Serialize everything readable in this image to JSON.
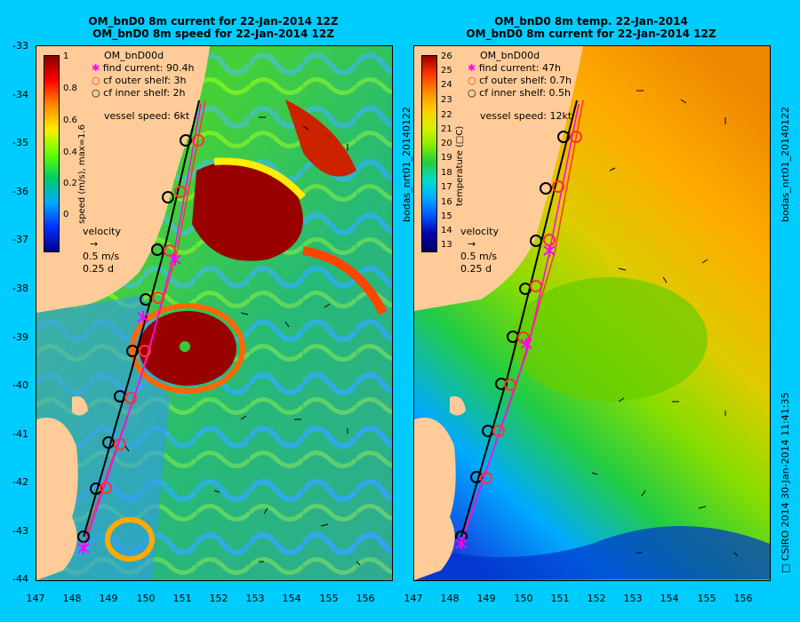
{
  "left": {
    "title1": "OM_bnD0 8m current for 22-Jan-2014 12Z",
    "title2": "OM_bnD0 8m speed for 22-Jan-2014 12Z",
    "legend_title": "OM_bnD00d",
    "find": "find current: 90.4h",
    "outer": "cf outer shelf: 3h",
    "inner": "cf inner shelf: 2h",
    "vessel": "vessel speed: 6kt",
    "cbar_label": "speed (m/s), max=1.6",
    "cbar_ticks": [
      "1",
      "0.8",
      "0.6",
      "0.4",
      "0.2",
      "0"
    ],
    "velocity": "velocity",
    "vel1": "0.5 m/s",
    "vel2": "0.25 d"
  },
  "right": {
    "title1": "OM_bnD0 8m temp. 22-Jan-2014",
    "title2": "OM_bnD0 8m current for 22-Jan-2014 12Z",
    "legend_title": "OM_bnD00d",
    "find": "find current: 47h",
    "outer": "cf outer shelf: 0.7h",
    "inner": "cf inner shelf: 0.5h",
    "vessel": "vessel speed: 12kt",
    "cbar_label": "temperature (□C)",
    "cbar_ticks": [
      "26",
      "25",
      "24",
      "23",
      "22",
      "21",
      "20",
      "19",
      "18",
      "17",
      "16",
      "15",
      "14",
      "13"
    ],
    "velocity": "velocity",
    "vel1": "0.5 m/s",
    "vel2": "0.25 d"
  },
  "y_ticks": [
    "-33",
    "-34",
    "-35",
    "-36",
    "-37",
    "-38",
    "-39",
    "-40",
    "-41",
    "-42",
    "-43",
    "-44"
  ],
  "x_ticks": [
    "147",
    "148",
    "149",
    "150",
    "151",
    "152",
    "153",
    "154",
    "155",
    "156"
  ],
  "side_left": "bodas_nrt01_20140122",
  "side_right": "bodas_nrt01_20140122",
  "credit": "□ CSIRO 2014   30-Jan-2014 11:41:35",
  "colors": {
    "land": "#ffcc99",
    "background": "#00ccff",
    "find": "#ff00ff",
    "outer": "#ff3333",
    "inner": "#000000"
  }
}
